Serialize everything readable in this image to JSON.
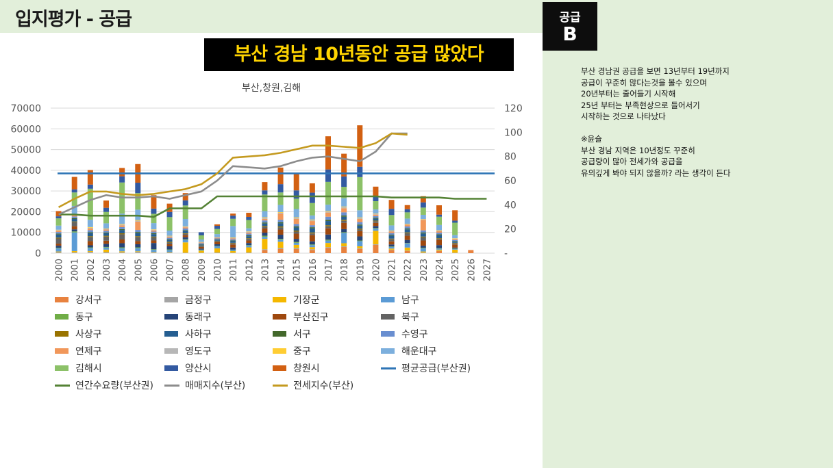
{
  "header": {
    "title": "입지평가 - 공급"
  },
  "badge": {
    "top": "공급",
    "grade": "B"
  },
  "banner": {
    "text": "부산 경남 10년동안 공급 많았다"
  },
  "note": {
    "lines": [
      "부산 경남권 공급을 보면 13년부터 19년까지",
      "공급이 꾸준히 많다는것을 볼수 있으며",
      "20년부터는 줄어들기 시작해",
      "25년 부터는 부족현상으로 들어서기",
      "시작하는 것으로 나타났다",
      "",
      "※윤슬",
      "부산 경남 지역은 10년정도 꾸준히",
      "공급량이 많아 전세가와 공급을",
      "유의깊게 봐야 되지 않을까? 라는 생각이 든다"
    ]
  },
  "chart_data": {
    "type": "bar",
    "stacked": true,
    "title": "부산,창원,김해",
    "categories": [
      "2000",
      "2001",
      "2002",
      "2003",
      "2004",
      "2005",
      "2006",
      "2007",
      "2008",
      "2009",
      "2010",
      "2011",
      "2012",
      "2013",
      "2014",
      "2015",
      "2016",
      "2017",
      "2018",
      "2019",
      "2020",
      "2021",
      "2022",
      "2023",
      "2024",
      "2025",
      "2026",
      "2027"
    ],
    "y_left": {
      "min": 0,
      "max": 70000,
      "ticks": [
        "0",
        "10000",
        "20000",
        "30000",
        "40000",
        "50000",
        "60000",
        "70000"
      ]
    },
    "y_right": {
      "min": 0,
      "max": 120,
      "ticks": [
        "-",
        "20",
        "40",
        "60",
        "80",
        "100",
        "120"
      ]
    },
    "bar_series": [
      {
        "name": "강서구",
        "color": "#e8823f",
        "values": [
          0,
          0,
          0,
          0,
          0,
          0,
          0,
          0,
          0,
          0,
          0,
          0,
          0,
          1500,
          2000,
          2000,
          1500,
          2500,
          3000,
          2000,
          4000,
          1500,
          1000,
          0,
          1000,
          0,
          1500,
          0
        ]
      },
      {
        "name": "금정구",
        "color": "#a5a5a5",
        "values": [
          500,
          400,
          600,
          500,
          400,
          600,
          400,
          300,
          200,
          200,
          300,
          200,
          300,
          400,
          500,
          500,
          400,
          400,
          300,
          300,
          300,
          200,
          200,
          300,
          200,
          200,
          0,
          0
        ]
      },
      {
        "name": "기장군",
        "color": "#f5b800",
        "values": [
          300,
          600,
          400,
          1200,
          500,
          300,
          200,
          200,
          5000,
          1000,
          2000,
          800,
          2500,
          5000,
          3000,
          1500,
          1000,
          2000,
          1500,
          1000,
          6500,
          500,
          1500,
          500,
          500,
          1500,
          0,
          0
        ]
      },
      {
        "name": "남구",
        "color": "#5b9bd5",
        "values": [
          1500,
          9000,
          1500,
          1000,
          1500,
          1500,
          1000,
          1000,
          1200,
          300,
          1000,
          500,
          800,
          1000,
          1000,
          1000,
          1000,
          1200,
          5000,
          2500,
          1000,
          800,
          2000,
          1500,
          500,
          300,
          0,
          0
        ]
      },
      {
        "name": "동구",
        "color": "#70ad47",
        "values": [
          300,
          500,
          300,
          300,
          400,
          400,
          300,
          300,
          300,
          200,
          200,
          200,
          300,
          500,
          400,
          400,
          300,
          400,
          300,
          300,
          300,
          200,
          200,
          300,
          200,
          200,
          0,
          0
        ]
      },
      {
        "name": "동래구",
        "color": "#264478",
        "values": [
          1000,
          1000,
          1000,
          1500,
          2000,
          1500,
          3000,
          1500,
          1000,
          500,
          800,
          1000,
          1000,
          1500,
          2000,
          1500,
          1500,
          2500,
          1500,
          2000,
          1000,
          1000,
          1500,
          1000,
          1500,
          500,
          0,
          0
        ]
      },
      {
        "name": "부산진구",
        "color": "#9e480e",
        "values": [
          1000,
          1500,
          2000,
          1500,
          1800,
          1500,
          1200,
          1000,
          1000,
          800,
          1000,
          1500,
          1200,
          2000,
          2500,
          2500,
          3000,
          3000,
          3000,
          2500,
          1500,
          1500,
          2000,
          2500,
          2500,
          1500,
          0,
          0
        ]
      },
      {
        "name": "북구",
        "color": "#636363",
        "values": [
          2500,
          2000,
          2000,
          2000,
          2500,
          2000,
          1500,
          800,
          600,
          500,
          500,
          500,
          800,
          800,
          1000,
          1000,
          800,
          1000,
          1000,
          800,
          800,
          1000,
          1200,
          1500,
          500,
          500,
          0,
          0
        ]
      },
      {
        "name": "사상구",
        "color": "#997300",
        "values": [
          400,
          300,
          400,
          400,
          500,
          400,
          400,
          400,
          300,
          200,
          200,
          300,
          300,
          400,
          500,
          500,
          500,
          500,
          500,
          400,
          300,
          300,
          400,
          400,
          300,
          300,
          0,
          0
        ]
      },
      {
        "name": "사하구",
        "color": "#255e91",
        "values": [
          1500,
          1200,
          1500,
          1200,
          1500,
          1500,
          1200,
          1000,
          1200,
          500,
          500,
          800,
          1000,
          1200,
          1500,
          1500,
          2000,
          2000,
          1500,
          1500,
          1000,
          1500,
          1500,
          1500,
          1500,
          500,
          0,
          0
        ]
      },
      {
        "name": "서구",
        "color": "#43682b",
        "values": [
          400,
          400,
          400,
          400,
          500,
          500,
          400,
          300,
          300,
          200,
          200,
          300,
          400,
          500,
          500,
          500,
          500,
          600,
          600,
          500,
          400,
          400,
          400,
          500,
          400,
          300,
          0,
          0
        ]
      },
      {
        "name": "수영구",
        "color": "#698ed0",
        "values": [
          800,
          800,
          1000,
          800,
          1000,
          1000,
          800,
          600,
          800,
          400,
          400,
          600,
          800,
          1000,
          1200,
          1200,
          1000,
          1500,
          1500,
          1200,
          800,
          800,
          1000,
          1000,
          800,
          500,
          0,
          0
        ]
      },
      {
        "name": "연제구",
        "color": "#f1975a",
        "values": [
          600,
          600,
          800,
          600,
          800,
          4000,
          600,
          500,
          600,
          300,
          300,
          400,
          600,
          800,
          3000,
          2500,
          2000,
          2000,
          2000,
          1500,
          700,
          700,
          800,
          5000,
          700,
          500,
          0,
          0
        ]
      },
      {
        "name": "영도구",
        "color": "#b7b7b7",
        "values": [
          300,
          300,
          400,
          300,
          400,
          500,
          300,
          300,
          300,
          200,
          200,
          300,
          300,
          400,
          400,
          400,
          400,
          500,
          500,
          400,
          300,
          300,
          300,
          300,
          300,
          200,
          0,
          0
        ]
      },
      {
        "name": "중구",
        "color": "#ffcd33",
        "values": [
          200,
          200,
          300,
          200,
          300,
          300,
          200,
          200,
          200,
          100,
          100,
          200,
          200,
          300,
          300,
          300,
          300,
          300,
          300,
          300,
          200,
          200,
          200,
          200,
          200,
          200,
          0,
          0
        ]
      },
      {
        "name": "해운대구",
        "color": "#7cafdd",
        "values": [
          2000,
          4000,
          3500,
          2500,
          5000,
          5000,
          3000,
          2500,
          3500,
          1200,
          1500,
          5500,
          1500,
          3000,
          3500,
          4000,
          2000,
          3000,
          4000,
          3500,
          2000,
          2500,
          2500,
          2000,
          2500,
          1500,
          0,
          0
        ]
      },
      {
        "name": "김해시",
        "color": "#8cc168",
        "values": [
          3500,
          6500,
          15000,
          5500,
          15000,
          8000,
          4500,
          6500,
          6500,
          2000,
          2500,
          3500,
          4000,
          8000,
          6000,
          5000,
          6000,
          11000,
          5500,
          16000,
          4000,
          5000,
          3000,
          3500,
          4000,
          6000,
          0,
          0
        ]
      },
      {
        "name": "양산시",
        "color": "#335aa1",
        "values": [
          1000,
          1500,
          2000,
          2000,
          3000,
          5000,
          2500,
          2500,
          2500,
          1500,
          1500,
          1500,
          1500,
          2000,
          4000,
          4000,
          5000,
          6000,
          5000,
          5000,
          2000,
          3000,
          1500,
          2500,
          1000,
          1000,
          0,
          0
        ]
      },
      {
        "name": "창원시",
        "color": "#d26012",
        "values": [
          2500,
          6000,
          7000,
          3500,
          4000,
          9000,
          6500,
          4000,
          3500,
          0,
          700,
          1000,
          2000,
          4000,
          8000,
          8000,
          4500,
          16000,
          11000,
          20000,
          5000,
          4300,
          2000,
          3000,
          4500,
          5000,
          0,
          0
        ]
      }
    ],
    "line_series": [
      {
        "name": "평균공급(부산권)",
        "color": "#2e75b6",
        "axis": "left",
        "values": [
          38500,
          38500,
          38500,
          38500,
          38500,
          38500,
          38500,
          38500,
          38500,
          38500,
          38500,
          38500,
          38500,
          38500,
          38500,
          38500,
          38500,
          38500,
          38500,
          38500,
          38500,
          38500,
          38500,
          38500,
          38500,
          38500,
          38500,
          38500
        ]
      },
      {
        "name": "연간수요량(부산권)",
        "color": "#548235",
        "axis": "right",
        "values": [
          32,
          32,
          31,
          31,
          31,
          31,
          30,
          37,
          37,
          37,
          47,
          47,
          47,
          47,
          47,
          47,
          47,
          47,
          47,
          47,
          47,
          46,
          46,
          46,
          46,
          45,
          45,
          45
        ]
      },
      {
        "name": "매매지수(부산)",
        "color": "#8c8c8c",
        "axis": "right",
        "values": [
          32,
          38,
          44,
          48,
          46,
          46,
          47,
          45,
          48,
          51,
          60,
          72,
          71,
          70,
          72,
          76,
          79,
          80,
          78,
          76,
          84,
          99,
          99,
          null,
          null,
          null,
          null,
          null
        ]
      },
      {
        "name": "전세지수(부산)",
        "color": "#c49a1f",
        "axis": "right",
        "values": [
          38,
          45,
          51,
          51,
          49,
          48,
          49,
          51,
          53,
          57,
          66,
          79,
          80,
          81,
          83,
          86,
          89,
          89,
          88,
          87,
          91,
          99,
          98,
          null,
          null,
          null,
          null,
          null
        ]
      }
    ],
    "legend": [
      "강서구",
      "금정구",
      "기장군",
      "남구",
      "동구",
      "동래구",
      "부산진구",
      "북구",
      "사상구",
      "사하구",
      "서구",
      "수영구",
      "연제구",
      "영도구",
      "중구",
      "해운대구",
      "김해시",
      "양산시",
      "창원시",
      "평균공급(부산권)",
      "연간수요량(부산권)",
      "매매지수(부산)",
      "전세지수(부산)"
    ],
    "grid": true,
    "legend_position": "bottom"
  }
}
